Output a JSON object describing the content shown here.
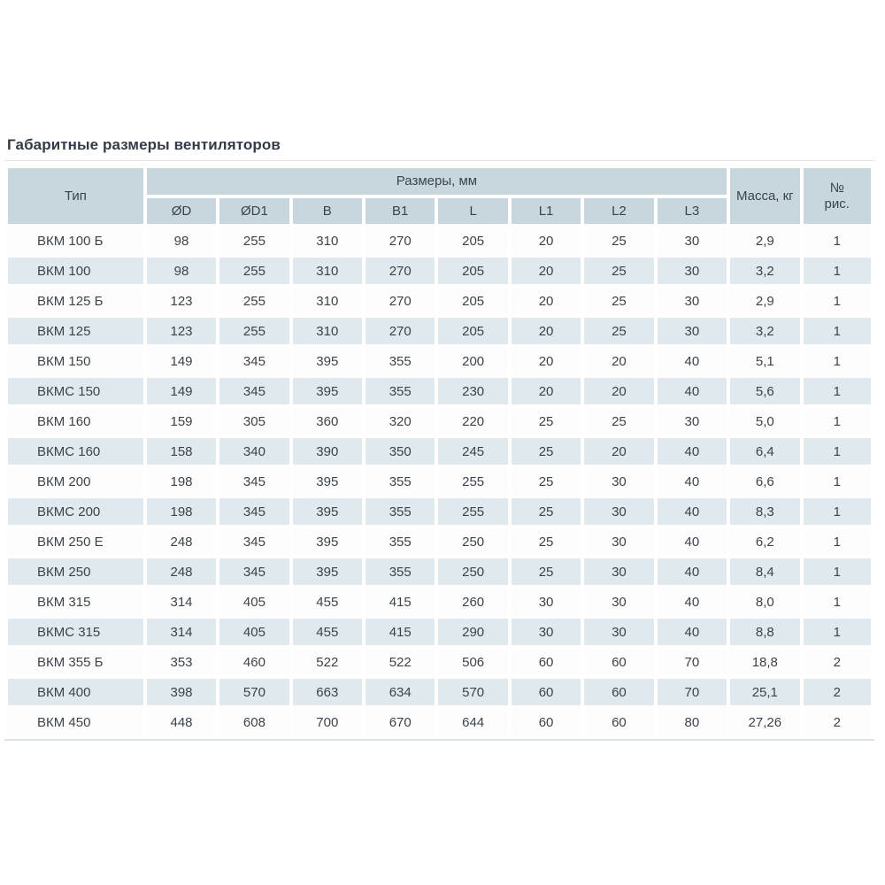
{
  "title": "Габаритные размеры вентиляторов",
  "table": {
    "col_type": "Тип",
    "col_sizes_group": "Размеры, мм",
    "col_mass": "Масса, кг",
    "col_fig_line1": "№",
    "col_fig_line2": "рис.",
    "size_columns": [
      "ØD",
      "ØD1",
      "B",
      "B1",
      "L",
      "L1",
      "L2",
      "L3"
    ],
    "rows": [
      {
        "type": "ВКМ 100 Б",
        "values": [
          "98",
          "255",
          "310",
          "270",
          "205",
          "20",
          "25",
          "30"
        ],
        "mass": "2,9",
        "fig": "1"
      },
      {
        "type": "ВКМ 100",
        "values": [
          "98",
          "255",
          "310",
          "270",
          "205",
          "20",
          "25",
          "30"
        ],
        "mass": "3,2",
        "fig": "1"
      },
      {
        "type": "ВКМ 125 Б",
        "values": [
          "123",
          "255",
          "310",
          "270",
          "205",
          "20",
          "25",
          "30"
        ],
        "mass": "2,9",
        "fig": "1"
      },
      {
        "type": "ВКМ 125",
        "values": [
          "123",
          "255",
          "310",
          "270",
          "205",
          "20",
          "25",
          "30"
        ],
        "mass": "3,2",
        "fig": "1"
      },
      {
        "type": "ВКМ 150",
        "values": [
          "149",
          "345",
          "395",
          "355",
          "200",
          "20",
          "20",
          "40"
        ],
        "mass": "5,1",
        "fig": "1"
      },
      {
        "type": "ВКМС 150",
        "values": [
          "149",
          "345",
          "395",
          "355",
          "230",
          "20",
          "20",
          "40"
        ],
        "mass": "5,6",
        "fig": "1"
      },
      {
        "type": "ВКМ 160",
        "values": [
          "159",
          "305",
          "360",
          "320",
          "220",
          "25",
          "25",
          "30"
        ],
        "mass": "5,0",
        "fig": "1"
      },
      {
        "type": "ВКМС 160",
        "values": [
          "158",
          "340",
          "390",
          "350",
          "245",
          "25",
          "20",
          "40"
        ],
        "mass": "6,4",
        "fig": "1"
      },
      {
        "type": "ВКМ 200",
        "values": [
          "198",
          "345",
          "395",
          "355",
          "255",
          "25",
          "30",
          "40"
        ],
        "mass": "6,6",
        "fig": "1"
      },
      {
        "type": "ВКМС 200",
        "values": [
          "198",
          "345",
          "395",
          "355",
          "255",
          "25",
          "30",
          "40"
        ],
        "mass": "8,3",
        "fig": "1"
      },
      {
        "type": "ВКМ 250 Е",
        "values": [
          "248",
          "345",
          "395",
          "355",
          "250",
          "25",
          "30",
          "40"
        ],
        "mass": "6,2",
        "fig": "1"
      },
      {
        "type": "ВКМ 250",
        "values": [
          "248",
          "345",
          "395",
          "355",
          "250",
          "25",
          "30",
          "40"
        ],
        "mass": "8,4",
        "fig": "1"
      },
      {
        "type": "ВКМ 315",
        "values": [
          "314",
          "405",
          "455",
          "415",
          "260",
          "30",
          "30",
          "40"
        ],
        "mass": "8,0",
        "fig": "1"
      },
      {
        "type": "ВКМС 315",
        "values": [
          "314",
          "405",
          "455",
          "415",
          "290",
          "30",
          "30",
          "40"
        ],
        "mass": "8,8",
        "fig": "1"
      },
      {
        "type": "ВКМ 355 Б",
        "values": [
          "353",
          "460",
          "522",
          "522",
          "506",
          "60",
          "60",
          "70"
        ],
        "mass": "18,8",
        "fig": "2"
      },
      {
        "type": "ВКМ 400",
        "values": [
          "398",
          "570",
          "663",
          "634",
          "570",
          "60",
          "60",
          "70"
        ],
        "mass": "25,1",
        "fig": "2"
      },
      {
        "type": "ВКМ 450",
        "values": [
          "448",
          "608",
          "700",
          "670",
          "644",
          "60",
          "60",
          "80"
        ],
        "mass": "27,26",
        "fig": "2"
      }
    ]
  },
  "colors": {
    "header_bg": "#c8d7de",
    "alt_row_bg": "#dfe9ee",
    "text": "#3c434b",
    "title_text": "#333b46",
    "top_rule": "#e3e7e9",
    "bottom_rule": "#d9e4ea"
  }
}
